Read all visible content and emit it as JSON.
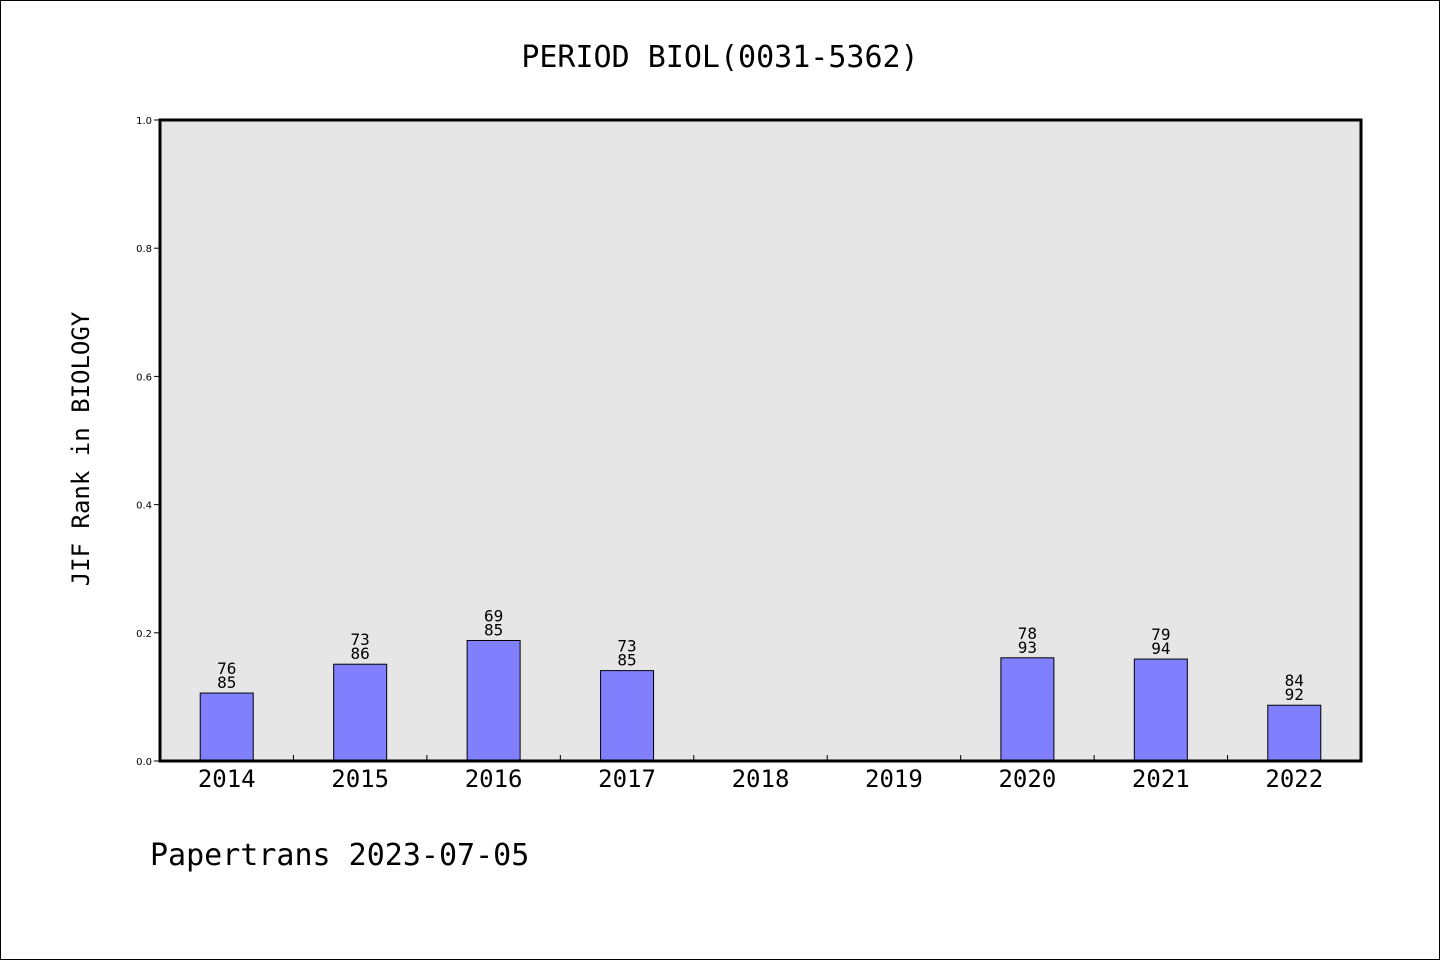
{
  "chart_data": {
    "type": "bar",
    "title": "PERIOD BIOL(0031-5362)",
    "xlabel": "",
    "ylabel": "JIF Rank in BIOLOGY",
    "ylim": [
      0,
      1.0
    ],
    "yticks": [
      "0.0",
      "0.2",
      "0.4",
      "0.6",
      "0.8",
      "1.0"
    ],
    "grid": false,
    "categories": [
      "2014",
      "2015",
      "2016",
      "2017",
      "2018",
      "2019",
      "2020",
      "2021",
      "2022"
    ],
    "values": [
      0.106,
      0.151,
      0.188,
      0.141,
      null,
      null,
      0.161,
      0.159,
      0.087
    ],
    "rank": [
      "76",
      "73",
      "69",
      "73",
      null,
      null,
      "78",
      "79",
      "84"
    ],
    "total": [
      "85",
      "86",
      "85",
      "85",
      null,
      null,
      "93",
      "94",
      "92"
    ],
    "bar_color": "#8080ff",
    "plot_background": "#e6e6e6"
  },
  "footer": "Papertrans 2023-07-05"
}
